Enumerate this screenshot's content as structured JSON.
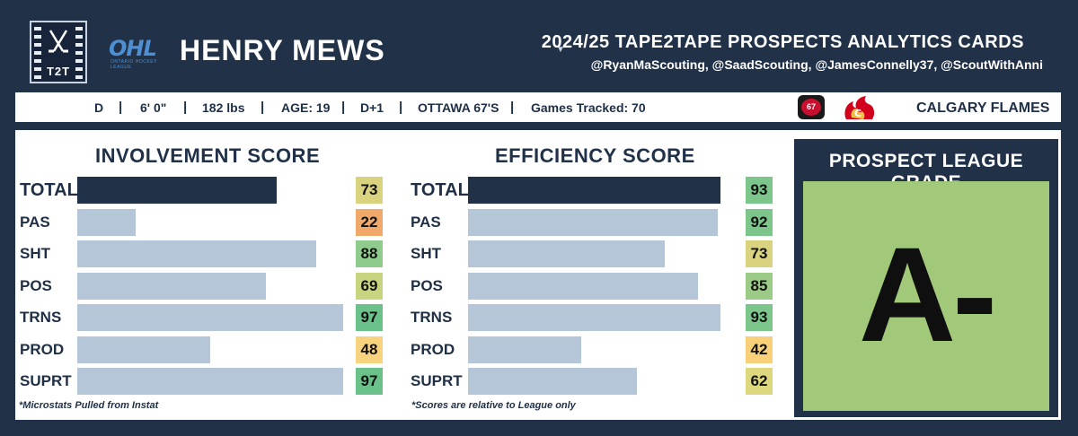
{
  "header": {
    "logo_text": "T2T",
    "league_logo_text": "OHL",
    "league_logo_subtext": "ONTARIO HOCKEY LEAGUE",
    "player_name": "HENRY MEWS",
    "card_title": "2024/25 TAPE2TAPE PROSPECTS ANALYTICS CARDS",
    "credits": "@RyanMaScouting, @SaadScouting, @JamesConnelly37, @ScoutWithAnni"
  },
  "info": {
    "position": "D",
    "height": "6' 0\"",
    "weight": "182 lbs",
    "age": "AGE: 19",
    "draft_status": "D+1",
    "team": "OTTAWA 67'S",
    "games": "Games Tracked: 70",
    "separator": "|",
    "team_logo_text": "67",
    "nhl_team": "CALGARY FLAMES"
  },
  "involvement": {
    "title": "INVOLVEMENT SCORE",
    "footnote": "*Microstats Pulled from Instat",
    "rows": [
      {
        "label": "TOTAL",
        "value": 73,
        "bar_pct": 75,
        "color": "#d9d37f"
      },
      {
        "label": "PAS",
        "value": 22,
        "bar_pct": 22,
        "color": "#f0a96b"
      },
      {
        "label": "SHT",
        "value": 88,
        "bar_pct": 90,
        "color": "#8fcb8c"
      },
      {
        "label": "POS",
        "value": 69,
        "bar_pct": 71,
        "color": "#c9d481"
      },
      {
        "label": "TRNS",
        "value": 97,
        "bar_pct": 100,
        "color": "#6bc18a"
      },
      {
        "label": "PROD",
        "value": 48,
        "bar_pct": 50,
        "color": "#f7d37e"
      },
      {
        "label": "SUPRT",
        "value": 97,
        "bar_pct": 100,
        "color": "#6bc18a"
      }
    ]
  },
  "efficiency": {
    "title": "EFFICIENCY SCORE",
    "footnote": "*Scores are relative to League only",
    "rows": [
      {
        "label": "TOTAL",
        "value": 93,
        "bar_pct": 100,
        "color": "#7cc58b"
      },
      {
        "label": "PAS",
        "value": 92,
        "bar_pct": 99,
        "color": "#7cc58b"
      },
      {
        "label": "SHT",
        "value": 73,
        "bar_pct": 78,
        "color": "#d9d37f"
      },
      {
        "label": "POS",
        "value": 85,
        "bar_pct": 91,
        "color": "#9ccb87"
      },
      {
        "label": "TRNS",
        "value": 93,
        "bar_pct": 100,
        "color": "#7cc58b"
      },
      {
        "label": "PROD",
        "value": 42,
        "bar_pct": 45,
        "color": "#f8d07a"
      },
      {
        "label": "SUPRT",
        "value": 62,
        "bar_pct": 67,
        "color": "#ddd77e"
      }
    ]
  },
  "grade": {
    "title": "PROSPECT LEAGUE GRADE",
    "value": "A-"
  }
}
